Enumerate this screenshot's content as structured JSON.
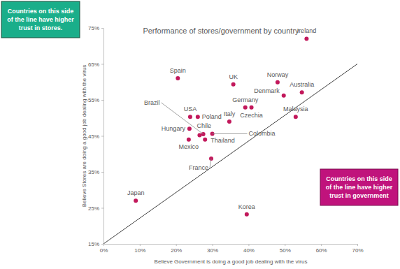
{
  "chart_data": {
    "type": "scatter",
    "title": "Performance of stores/government by country",
    "x_label": "Believe Government is doing a good job dealing with the virus",
    "y_label": "Believe Stores are doing a good job dealing with the virus",
    "labels": [
      "Ireland",
      "Spain",
      "UK",
      "Norway",
      "Australia",
      "Denmark",
      "Germany",
      "Czechia",
      "Malaysia",
      "Italy",
      "USA",
      "Poland",
      "Hungary",
      "Brazil",
      "Chile",
      "Mexico",
      "Thailand",
      "Colombia",
      "France",
      "Japan",
      "Korea"
    ],
    "x": [
      56,
      20.5,
      35.8,
      48,
      54.7,
      49.7,
      39.1,
      40.8,
      53,
      34.7,
      23.9,
      26,
      23.7,
      27.5,
      26.5,
      23.5,
      28,
      30,
      29.7,
      8.9,
      39.5
    ],
    "values": [
      72,
      61,
      59.3,
      59.9,
      57.1,
      56.2,
      52.9,
      52.9,
      50.3,
      49,
      50.3,
      50.3,
      47,
      45.5,
      45.2,
      44,
      44,
      45.6,
      38.7,
      27,
      23.2
    ],
    "color": "#c2185b",
    "marker": "circle",
    "xlim": [
      0,
      70
    ],
    "ylim": [
      15,
      75
    ],
    "xticks": [
      {
        "value": 0,
        "label": "0%"
      },
      {
        "value": 10,
        "label": "10%"
      },
      {
        "value": 20,
        "label": "20%"
      },
      {
        "value": 30,
        "label": "30%"
      },
      {
        "value": 40,
        "label": "40%"
      },
      {
        "value": 50,
        "label": "50%"
      },
      {
        "value": 60,
        "label": "60%"
      },
      {
        "value": 70,
        "label": "70%"
      }
    ],
    "yticks": [
      {
        "value": 15,
        "label": "15%"
      },
      {
        "value": 25,
        "label": "25%"
      },
      {
        "value": 35,
        "label": "35%"
      },
      {
        "value": 45,
        "label": "45%"
      },
      {
        "value": 55,
        "label": "55%"
      },
      {
        "value": 65,
        "label": "65%"
      },
      {
        "value": 75,
        "label": "75%"
      }
    ],
    "grid": false,
    "reference_line": {
      "x": [
        0,
        70
      ],
      "y": [
        15,
        65
      ]
    },
    "annotations": [
      {
        "text": "Countries on this side of the line have higher trust in stores.",
        "color": "#1aae8a"
      },
      {
        "text": "Countries on this side of the line have higher trust in government",
        "color": "#c0137c"
      }
    ]
  }
}
